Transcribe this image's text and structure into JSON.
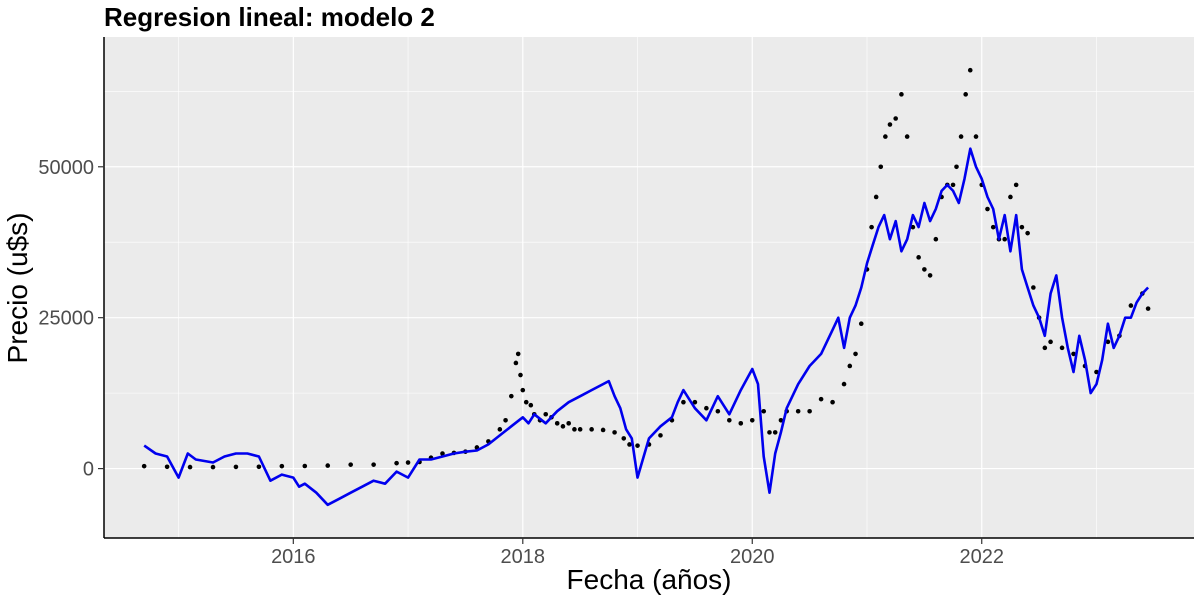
{
  "chart_data": {
    "type": "line",
    "title": "Regresion lineal: modelo 2",
    "xlabel": "Fecha (años)",
    "ylabel": "Precio (u$s)",
    "xlim": [
      2014.35,
      2023.85
    ],
    "ylim": [
      -11500,
      71500
    ],
    "x_ticks": [
      2016,
      2018,
      2020,
      2022
    ],
    "x_tick_labels": [
      "2016",
      "2018",
      "2020",
      "2022"
    ],
    "y_ticks": [
      0,
      25000,
      50000
    ],
    "y_tick_labels": [
      "0",
      "25000",
      "50000"
    ],
    "grid": true,
    "legend": "none",
    "colors": {
      "panel": "#ebebeb",
      "grid": "#ffffff",
      "observed": "#000000",
      "fitted": "#0000ee"
    },
    "series": [
      {
        "role": "observed",
        "style": "points",
        "x": [
          2014.7,
          2014.9,
          2015.1,
          2015.3,
          2015.5,
          2015.7,
          2015.9,
          2016.1,
          2016.3,
          2016.5,
          2016.7,
          2016.9,
          2017.0,
          2017.1,
          2017.2,
          2017.3,
          2017.4,
          2017.5,
          2017.6,
          2017.7,
          2017.8,
          2017.85,
          2017.9,
          2017.94,
          2017.96,
          2017.98,
          2018.0,
          2018.03,
          2018.07,
          2018.1,
          2018.15,
          2018.2,
          2018.25,
          2018.3,
          2018.35,
          2018.4,
          2018.45,
          2018.5,
          2018.6,
          2018.7,
          2018.8,
          2018.88,
          2018.93,
          2019.0,
          2019.1,
          2019.2,
          2019.3,
          2019.4,
          2019.5,
          2019.6,
          2019.7,
          2019.8,
          2019.9,
          2020.0,
          2020.1,
          2020.15,
          2020.2,
          2020.25,
          2020.3,
          2020.4,
          2020.5,
          2020.6,
          2020.7,
          2020.8,
          2020.85,
          2020.9,
          2020.95,
          2021.0,
          2021.04,
          2021.08,
          2021.12,
          2021.16,
          2021.2,
          2021.25,
          2021.3,
          2021.35,
          2021.4,
          2021.45,
          2021.5,
          2021.55,
          2021.6,
          2021.65,
          2021.7,
          2021.75,
          2021.78,
          2021.82,
          2021.86,
          2021.9,
          2021.95,
          2022.0,
          2022.05,
          2022.1,
          2022.15,
          2022.2,
          2022.25,
          2022.3,
          2022.35,
          2022.4,
          2022.45,
          2022.5,
          2022.55,
          2022.6,
          2022.7,
          2022.8,
          2022.9,
          2023.0,
          2023.1,
          2023.2,
          2023.3,
          2023.4,
          2023.45
        ],
        "values": [
          400,
          300,
          250,
          250,
          280,
          300,
          400,
          430,
          500,
          650,
          650,
          900,
          1000,
          1100,
          1800,
          2500,
          2600,
          2800,
          3500,
          4500,
          6500,
          8000,
          12000,
          17500,
          19000,
          15500,
          13000,
          11000,
          10500,
          9000,
          8000,
          9000,
          8500,
          7500,
          7000,
          7500,
          6500,
          6500,
          6500,
          6400,
          6000,
          5000,
          4000,
          3800,
          4000,
          5500,
          8000,
          11000,
          11000,
          10000,
          9500,
          8000,
          7500,
          8000,
          9500,
          6000,
          6000,
          8000,
          9500,
          9500,
          9500,
          11500,
          11000,
          14000,
          17000,
          19000,
          24000,
          33000,
          40000,
          45000,
          50000,
          55000,
          57000,
          58000,
          62000,
          55000,
          40000,
          35000,
          33000,
          32000,
          38000,
          45000,
          47000,
          47000,
          50000,
          55000,
          62000,
          66000,
          55000,
          47000,
          43000,
          40000,
          38000,
          38000,
          45000,
          47000,
          40000,
          39000,
          30000,
          25000,
          20000,
          21000,
          20000,
          19000,
          17000,
          16000,
          21000,
          22000,
          27000,
          29000,
          26500
        ]
      },
      {
        "role": "fitted",
        "style": "line",
        "x": [
          2014.7,
          2014.8,
          2014.9,
          2015.0,
          2015.08,
          2015.15,
          2015.3,
          2015.4,
          2015.5,
          2015.6,
          2015.7,
          2015.8,
          2015.9,
          2016.0,
          2016.05,
          2016.1,
          2016.2,
          2016.3,
          2016.4,
          2016.5,
          2016.6,
          2016.7,
          2016.8,
          2016.9,
          2017.0,
          2017.1,
          2017.2,
          2017.3,
          2017.4,
          2017.5,
          2017.6,
          2017.7,
          2017.8,
          2017.9,
          2018.0,
          2018.05,
          2018.1,
          2018.2,
          2018.3,
          2018.4,
          2018.5,
          2018.6,
          2018.7,
          2018.75,
          2018.8,
          2018.85,
          2018.9,
          2018.95,
          2019.0,
          2019.1,
          2019.2,
          2019.3,
          2019.35,
          2019.4,
          2019.5,
          2019.6,
          2019.7,
          2019.8,
          2019.9,
          2020.0,
          2020.05,
          2020.1,
          2020.15,
          2020.2,
          2020.25,
          2020.3,
          2020.4,
          2020.5,
          2020.6,
          2020.7,
          2020.75,
          2020.8,
          2020.85,
          2020.9,
          2020.95,
          2021.0,
          2021.05,
          2021.1,
          2021.15,
          2021.2,
          2021.25,
          2021.3,
          2021.35,
          2021.4,
          2021.45,
          2021.5,
          2021.55,
          2021.6,
          2021.65,
          2021.7,
          2021.75,
          2021.8,
          2021.85,
          2021.9,
          2021.95,
          2022.0,
          2022.05,
          2022.1,
          2022.15,
          2022.2,
          2022.25,
          2022.3,
          2022.35,
          2022.4,
          2022.45,
          2022.5,
          2022.55,
          2022.6,
          2022.65,
          2022.7,
          2022.75,
          2022.8,
          2022.85,
          2022.9,
          2022.95,
          2023.0,
          2023.05,
          2023.1,
          2023.15,
          2023.2,
          2023.25,
          2023.3,
          2023.35,
          2023.4,
          2023.45
        ],
        "values": [
          3800,
          2500,
          2000,
          -1500,
          2500,
          1500,
          1000,
          2000,
          2500,
          2500,
          2000,
          -2000,
          -1000,
          -1500,
          -3000,
          -2500,
          -4000,
          -6000,
          -5000,
          -4000,
          -3000,
          -2000,
          -2500,
          -500,
          -1500,
          1500,
          1500,
          2000,
          2500,
          2800,
          3000,
          4000,
          5500,
          7000,
          8500,
          7500,
          9000,
          7500,
          9500,
          11000,
          12000,
          13000,
          14000,
          14500,
          12000,
          10000,
          6500,
          5000,
          -1500,
          5000,
          7000,
          8500,
          11000,
          13000,
          10000,
          8000,
          12000,
          9000,
          13000,
          16500,
          14000,
          2000,
          -4000,
          2500,
          6000,
          10000,
          14000,
          17000,
          19000,
          23000,
          25000,
          20000,
          25000,
          27000,
          30000,
          34000,
          37000,
          40000,
          42000,
          38000,
          41000,
          36000,
          38000,
          42000,
          40000,
          44000,
          41000,
          43000,
          46000,
          47000,
          46000,
          44000,
          48000,
          53000,
          50000,
          48000,
          45000,
          43000,
          38000,
          42000,
          36000,
          42000,
          33000,
          30000,
          27000,
          25000,
          22000,
          29000,
          32000,
          25000,
          20000,
          16000,
          22000,
          18000,
          12500,
          14000,
          18000,
          24000,
          20000,
          22000,
          25000,
          25000,
          27500,
          29000,
          30000
        ]
      }
    ]
  }
}
